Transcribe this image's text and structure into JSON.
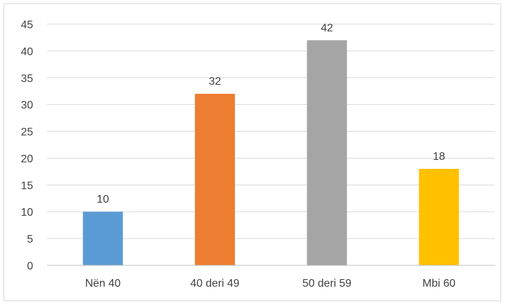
{
  "chart_data": {
    "type": "bar",
    "title": "",
    "xlabel": "",
    "ylabel": "",
    "categories": [
      "Nën 40",
      "40 deri 49",
      "50 deri 59",
      "Mbi 60"
    ],
    "values": [
      10,
      32,
      42,
      18
    ],
    "colors": [
      "#5b9bd5",
      "#ed7d31",
      "#a5a5a5",
      "#ffc000"
    ],
    "ylim": [
      0,
      45
    ],
    "yticks": [
      0,
      5,
      10,
      15,
      20,
      25,
      30,
      35,
      40,
      45
    ],
    "grid": true,
    "legend": "none",
    "data_labels": true
  }
}
